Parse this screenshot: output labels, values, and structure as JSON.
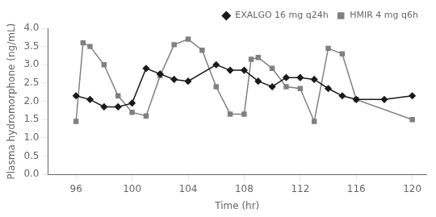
{
  "chart_data": {
    "type": "line",
    "x_label": "Time (hr)",
    "y_label": "Plasma hydromorphone (ng/mL)",
    "xlim": [
      94,
      121
    ],
    "ylim": [
      0,
      4.0
    ],
    "xticks": [
      96,
      100,
      104,
      108,
      112,
      116,
      120
    ],
    "yticks": [
      {
        "value": 0,
        "label": "0.0"
      },
      {
        "value": 0.5,
        "label": "0.5"
      },
      {
        "value": 1.0,
        "label": "1.0"
      },
      {
        "value": 1.5,
        "label": "1.5"
      },
      {
        "value": 2.0,
        "label": "2.0"
      },
      {
        "value": 2.5,
        "label": "2.5"
      },
      {
        "value": 3.0,
        "label": "3.0"
      },
      {
        "value": 3.5,
        "label": "3.5"
      },
      {
        "value": 4.0,
        "label": "4.0"
      }
    ],
    "grid": false,
    "legend": "top-right",
    "series": [
      {
        "name": "EXALGO 16 mg q24h",
        "color": "#1a1a1a",
        "marker": "diamond",
        "line_style": "solid",
        "x": [
          96,
          97,
          98,
          99,
          100,
          101,
          102,
          103,
          104,
          106,
          107,
          108,
          109,
          110,
          111,
          112,
          113,
          114,
          115,
          116,
          118,
          120
        ],
        "values": [
          2.15,
          2.05,
          1.85,
          1.85,
          1.95,
          2.9,
          2.75,
          2.6,
          2.55,
          3.0,
          2.85,
          2.85,
          2.55,
          2.4,
          2.65,
          2.65,
          2.6,
          2.35,
          2.15,
          2.05,
          2.05,
          2.15
        ]
      },
      {
        "name": "HMIR 4 mg q6h",
        "color": "#808080",
        "marker": "square",
        "line_style": "solid",
        "x": [
          96,
          96.5,
          97,
          98,
          99,
          100,
          101,
          102,
          103,
          104,
          105,
          106,
          107,
          108,
          108.5,
          109,
          110,
          111,
          112,
          113,
          114,
          115,
          116,
          120
        ],
        "values": [
          1.45,
          3.6,
          3.5,
          3.0,
          2.15,
          1.7,
          1.6,
          2.7,
          3.55,
          3.7,
          3.4,
          2.4,
          1.65,
          1.65,
          3.15,
          3.2,
          2.9,
          2.4,
          2.35,
          1.45,
          3.45,
          3.3,
          2.05,
          1.5
        ]
      }
    ]
  }
}
